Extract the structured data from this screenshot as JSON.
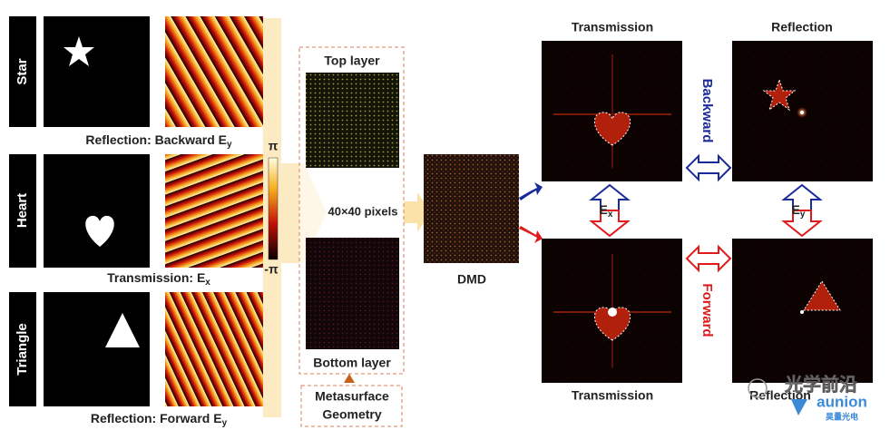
{
  "rows": [
    {
      "label": "Star",
      "caption": {
        "text": "Reflection: Backward E",
        "subscript": "y"
      }
    },
    {
      "label": "Heart",
      "caption": {
        "text": "Transmission: E",
        "subscript": "x"
      }
    },
    {
      "label": "Triangle",
      "caption": {
        "text": "Reflection: Forward E",
        "subscript": "y"
      }
    }
  ],
  "colorbar": {
    "max": "π",
    "min": "-π"
  },
  "metasurface": {
    "top_label": "Top layer",
    "size_label": "40×40 pixels",
    "bottom_label": "Bottom layer",
    "geometry_label": [
      "Metasurface",
      "Geometry"
    ]
  },
  "dmd_label": "DMD",
  "outputs": {
    "top_left": "Transmission",
    "top_right": "Reflection",
    "bottom_left": "Transmission",
    "bottom_right": "Reflection"
  },
  "directions": {
    "backward": "Backward",
    "forward": "Forward"
  },
  "polarizations": [
    {
      "text": "E",
      "subscript": "x"
    },
    {
      "text": "E",
      "subscript": "y"
    }
  ],
  "watermark": {
    "text": "光学前沿",
    "brand": "aunion",
    "brand_sub": "昊量光电"
  }
}
